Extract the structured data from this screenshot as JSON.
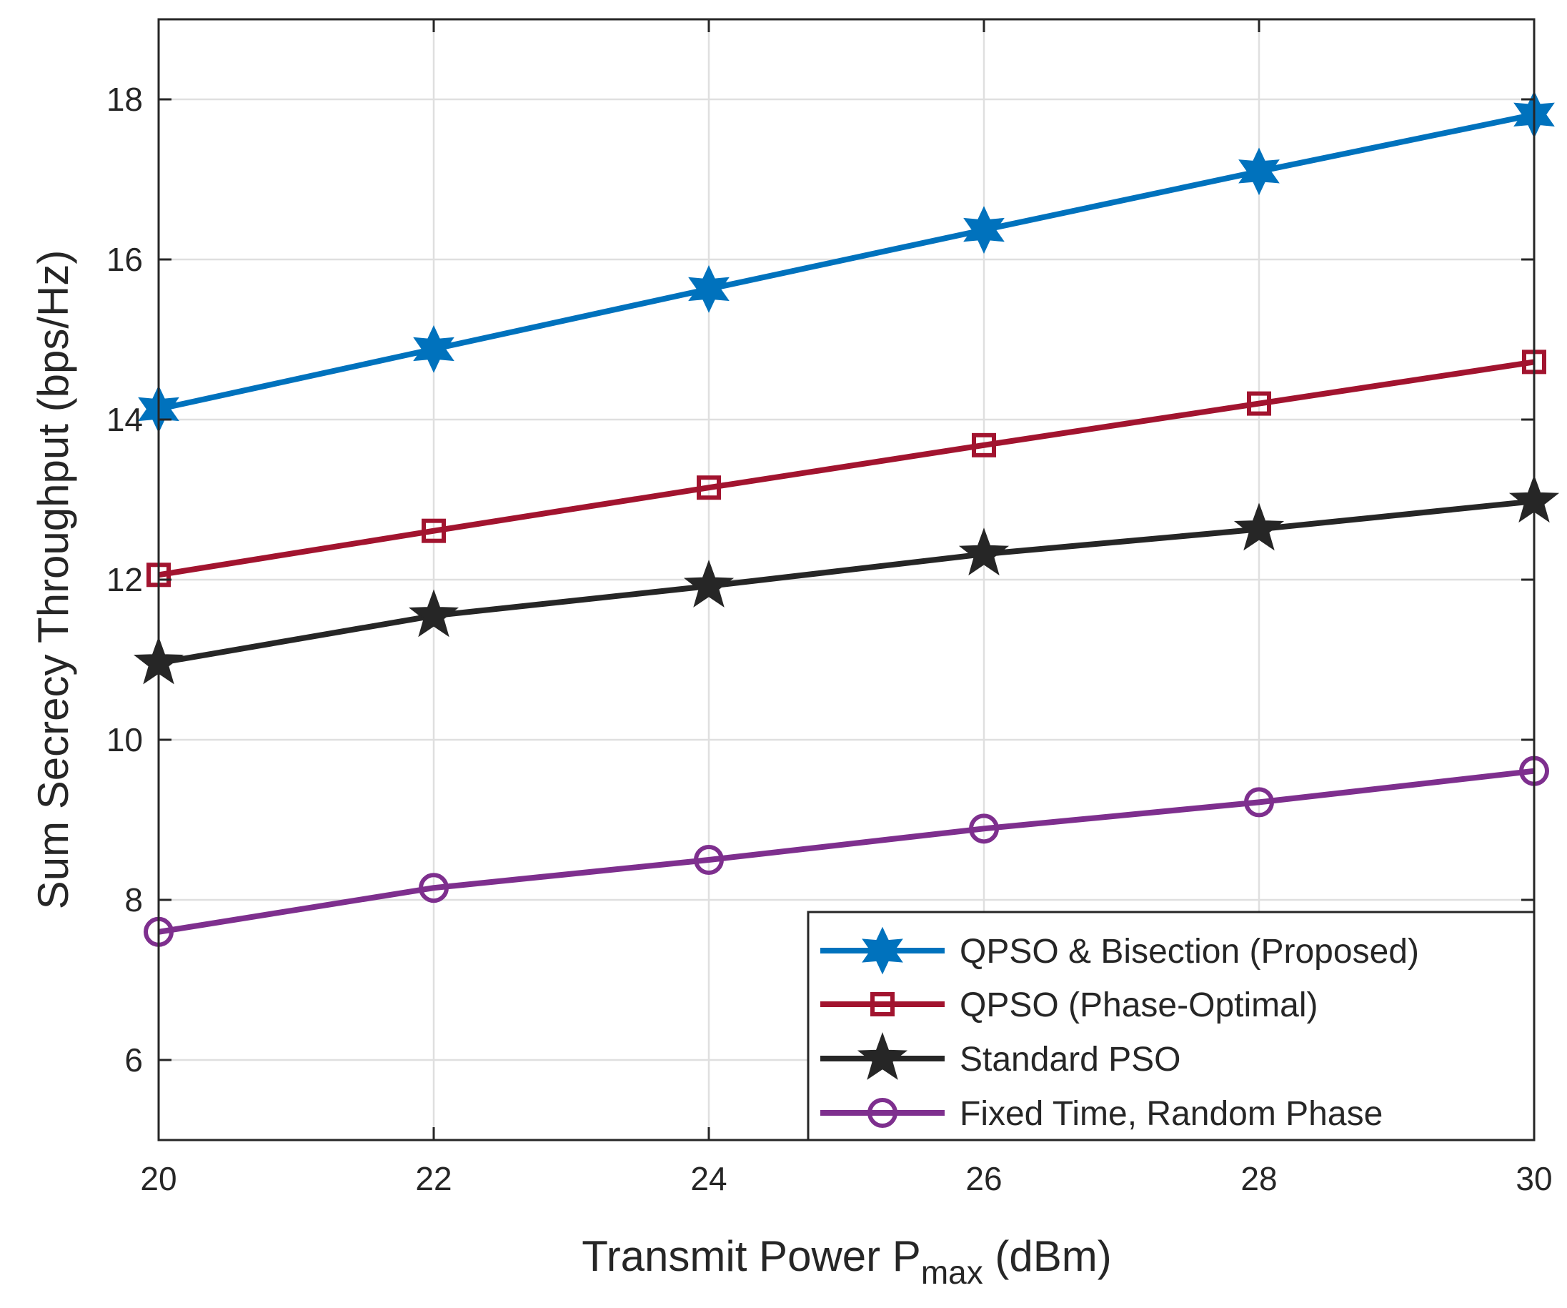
{
  "chart_data": {
    "type": "line",
    "title": "",
    "xlabel": "Transmit Power P",
    "xlabel_sub": "max",
    "xlabel_suffix": " (dBm)",
    "ylabel": "Sum Secrecy Throughput (bps/Hz)",
    "xlim": [
      20,
      30
    ],
    "ylim": [
      5,
      19
    ],
    "xticks": [
      20,
      22,
      24,
      26,
      28,
      30
    ],
    "yticks": [
      6,
      8,
      10,
      12,
      14,
      16,
      18
    ],
    "grid": true,
    "legend_position": "bottom-right",
    "x": [
      20,
      22,
      24,
      26,
      28,
      30
    ],
    "series": [
      {
        "name": "QPSO & Bisection (Proposed)",
        "marker": "hexagram",
        "color": "#0072BD",
        "values": [
          14.13,
          14.88,
          15.63,
          16.37,
          17.1,
          17.81
        ]
      },
      {
        "name": "QPSO (Phase-Optimal)",
        "marker": "square",
        "color": "#A2142F",
        "values": [
          12.06,
          12.61,
          13.15,
          13.68,
          14.2,
          14.72
        ]
      },
      {
        "name": "Standard PSO",
        "marker": "pentagram",
        "color": "#262626",
        "values": [
          10.96,
          11.55,
          11.92,
          12.32,
          12.63,
          12.98
        ]
      },
      {
        "name": "Fixed Time, Random Phase",
        "marker": "circle",
        "color": "#7E2F8E",
        "values": [
          7.6,
          8.15,
          8.5,
          8.89,
          9.22,
          9.61
        ]
      }
    ]
  }
}
